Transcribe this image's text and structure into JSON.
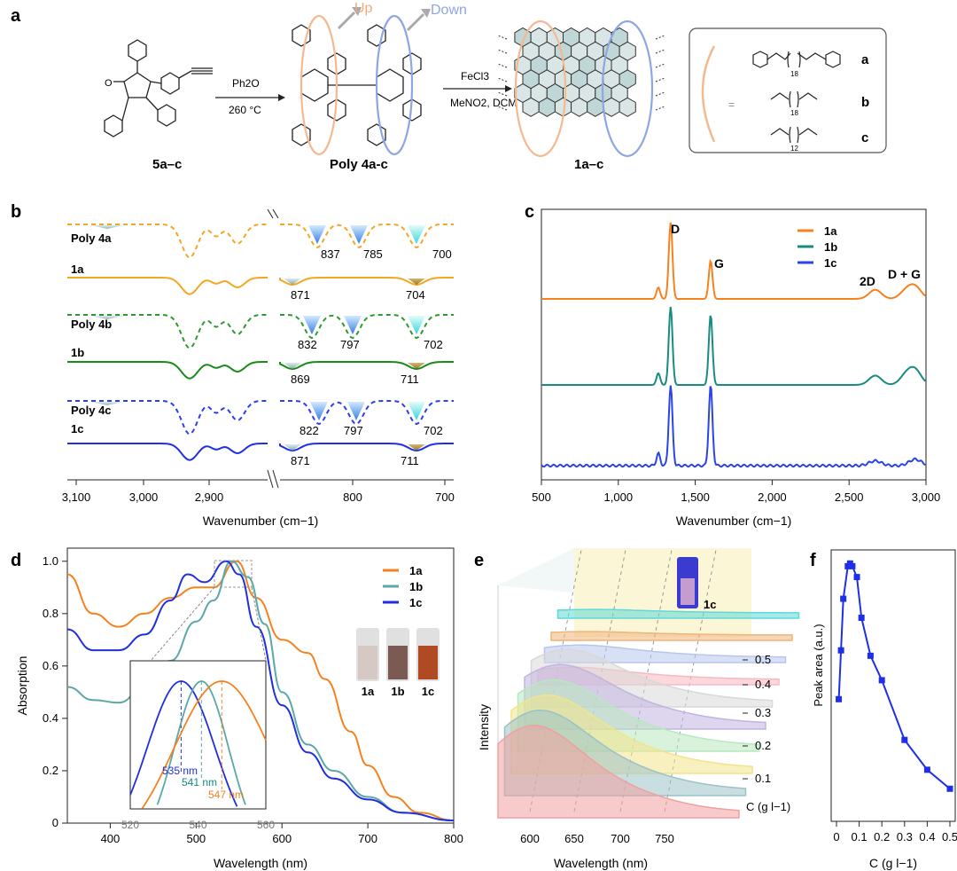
{
  "panels": {
    "a": {
      "label": "a",
      "reagent1": {
        "top": "Ph2O",
        "bottom": "260 °C"
      },
      "reagent2": {
        "top": "FeCl3",
        "bottom": "MeNO2, DCM"
      },
      "up_label": "Up",
      "down_label": "Down",
      "compound1": "5a–c",
      "compound2": "Poly 4a-c",
      "compound3": "1a–c",
      "legend": {
        "eq": "=",
        "items": [
          {
            "label": "a",
            "sub": "18"
          },
          {
            "label": "b",
            "sub": "18"
          },
          {
            "label": "c",
            "sub": "12"
          }
        ]
      },
      "ketone_label": "O"
    },
    "b": {
      "label": "b",
      "xlabel": "Wavenumber (cm−1)",
      "ticks": [
        "3,100",
        "3,000",
        "2,900",
        "800",
        "700"
      ],
      "traces": [
        {
          "name": "Poly 4a",
          "color": "#f5a623",
          "dashed": true,
          "peaks": [
            "837",
            "785",
            "700"
          ]
        },
        {
          "name": "1a",
          "color": "#f5a623",
          "dashed": false,
          "peaks": [
            "871",
            "704"
          ]
        },
        {
          "name": "Poly 4b",
          "color": "#2e9a2e",
          "dashed": true,
          "peaks": [
            "832",
            "797",
            "702"
          ]
        },
        {
          "name": "1b",
          "color": "#1a8a1a",
          "dashed": false,
          "peaks": [
            "869",
            "711"
          ]
        },
        {
          "name": "Poly 4c",
          "color": "#2b3ff0",
          "dashed": true,
          "peaks": [
            "822",
            "797",
            "702"
          ]
        },
        {
          "name": "1c",
          "color": "#1f2fe8",
          "dashed": false,
          "peaks": [
            "871",
            "711"
          ]
        }
      ]
    },
    "c": {
      "label": "c",
      "xlabel": "Wavenumber (cm−1)",
      "xlim": [
        500,
        3000
      ],
      "ticks": [
        "500",
        "1,000",
        "1,500",
        "2,000",
        "2,500",
        "3,000"
      ],
      "band_labels": {
        "D": "D",
        "G": "G",
        "twoD": "2D",
        "DG": "D + G"
      },
      "series": [
        {
          "name": "1a",
          "color": "#f5821f"
        },
        {
          "name": "1b",
          "color": "#198b80"
        },
        {
          "name": "1c",
          "color": "#2a44e8"
        }
      ]
    },
    "d": {
      "label": "d",
      "xlabel": "Wavelength (nm)",
      "ylabel": "Absorption",
      "xlim": [
        350,
        800
      ],
      "ylim": [
        0,
        1.05
      ],
      "xticks": [
        "400",
        "500",
        "600",
        "700",
        "800"
      ],
      "yticks": [
        "0",
        "0.2",
        "0.4",
        "0.6",
        "0.8",
        "1.0"
      ],
      "series": [
        {
          "name": "1a",
          "color": "#f5821f"
        },
        {
          "name": "1b",
          "color": "#5aa8a8"
        },
        {
          "name": "1c",
          "color": "#1f2fe0"
        }
      ],
      "inset": {
        "xticks": [
          "520",
          "540",
          "560"
        ],
        "peaks": [
          {
            "label": "535 nm",
            "color": "#1f2fe0"
          },
          {
            "label": "541 nm",
            "color": "#198b80"
          },
          {
            "label": "547 nm",
            "color": "#f5821f"
          }
        ]
      },
      "vials": [
        "1a",
        "1b",
        "1c"
      ]
    },
    "e": {
      "label": "e",
      "xlabel": "Wavelength (nm)",
      "ylabel": "Intensity",
      "xticks": [
        "600",
        "650",
        "700",
        "750"
      ],
      "zlabel": "C (g l−1)",
      "zticks": [
        "0.5",
        "0.4",
        "0.3",
        "0.2",
        "0.1"
      ],
      "vial_label": "1c"
    },
    "f": {
      "label": "f",
      "xlabel": "C (g l−1)",
      "ylabel": "Peak area (a.u.)",
      "xticks": [
        "0",
        "0.1",
        "0.2",
        "0.3",
        "0.4",
        "0.5"
      ],
      "color": "#1f2fe8"
    }
  },
  "chart_data": [
    {
      "type": "line",
      "panel": "d",
      "xlabel": "Wavelength (nm)",
      "ylabel": "Absorption",
      "xlim": [
        350,
        800
      ],
      "ylim": [
        0,
        1.05
      ],
      "series": [
        {
          "name": "1a",
          "x": [
            350,
            380,
            410,
            440,
            470,
            500,
            520,
            547,
            570,
            600,
            630,
            650,
            680,
            700,
            730,
            760,
            800
          ],
          "y": [
            0.95,
            0.8,
            0.75,
            0.8,
            0.86,
            0.9,
            0.9,
            1.0,
            0.86,
            0.7,
            0.65,
            0.55,
            0.35,
            0.22,
            0.1,
            0.04,
            0.01
          ]
        },
        {
          "name": "1b",
          "x": [
            350,
            380,
            410,
            440,
            470,
            500,
            520,
            541,
            560,
            580,
            600,
            630,
            660,
            700,
            740,
            800
          ],
          "y": [
            0.52,
            0.47,
            0.46,
            0.52,
            0.62,
            0.77,
            0.85,
            1.0,
            0.94,
            0.76,
            0.5,
            0.3,
            0.2,
            0.1,
            0.04,
            0.01
          ]
        },
        {
          "name": "1c",
          "x": [
            350,
            380,
            410,
            440,
            470,
            490,
            510,
            535,
            550,
            570,
            600,
            630,
            660,
            700,
            740,
            800
          ],
          "y": [
            0.74,
            0.66,
            0.66,
            0.72,
            0.85,
            0.95,
            0.92,
            1.0,
            0.95,
            0.75,
            0.45,
            0.27,
            0.17,
            0.09,
            0.04,
            0.01
          ]
        }
      ]
    },
    {
      "type": "scatter",
      "panel": "f",
      "xlabel": "C (g l−1)",
      "ylabel": "Peak area (a.u.)",
      "xlim": [
        0,
        0.5
      ],
      "series": [
        {
          "name": "",
          "x": [
            0.01,
            0.02,
            0.03,
            0.05,
            0.06,
            0.07,
            0.09,
            0.11,
            0.15,
            0.2,
            0.3,
            0.4,
            0.5
          ],
          "y": [
            0.45,
            0.63,
            0.82,
            0.94,
            0.95,
            0.94,
            0.9,
            0.75,
            0.61,
            0.52,
            0.3,
            0.19,
            0.12
          ]
        }
      ]
    },
    {
      "type": "scatter",
      "panel": "c",
      "xlabel": "Wavenumber (cm−1)",
      "xlim": [
        500,
        3000
      ],
      "series": [
        {
          "name": "1a",
          "x": [
            1260,
            1340,
            1600,
            2670,
            2870,
            2930
          ],
          "y": [
            0.15,
            1.0,
            0.5,
            0.12,
            0.1,
            0.15
          ]
        },
        {
          "name": "1b",
          "x": [
            1260,
            1340,
            1600,
            2670,
            2870,
            2930
          ],
          "y": [
            0.15,
            1.0,
            0.9,
            0.12,
            0.12,
            0.18
          ]
        },
        {
          "name": "1c",
          "x": [
            1260,
            1340,
            1600,
            2670,
            2930
          ],
          "y": [
            0.15,
            1.0,
            1.0,
            0.06,
            0.08
          ]
        }
      ]
    }
  ]
}
